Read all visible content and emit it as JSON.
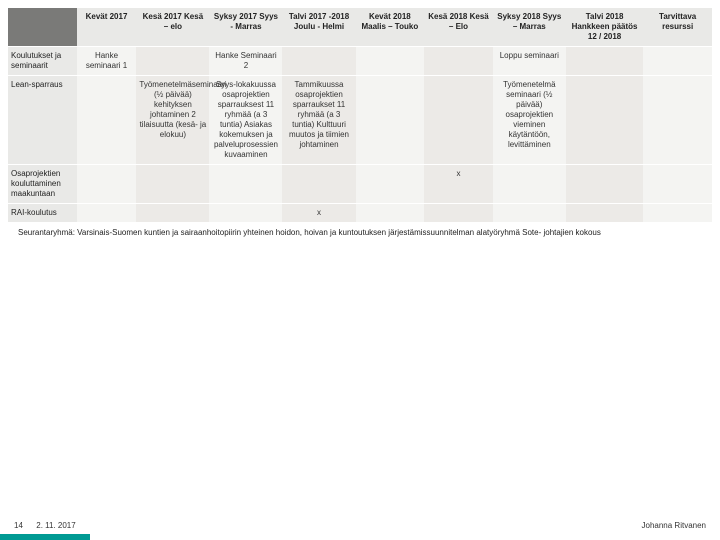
{
  "table": {
    "columns": [
      "",
      "Kevät 2017",
      "Kesä 2017 Kesä – elo",
      "Syksy 2017 Syys - Marras",
      "Talvi 2017 -2018 Joulu - Helmi",
      "Kevät 2018 Maalis – Touko",
      "Kesä 2018 Kesä – Elo",
      "Syksy 2018 Syys – Marras",
      "Talvi 2018 Hankkeen päätös 12 / 2018",
      "Tarvittava resurssi"
    ],
    "rows": [
      {
        "head": "Koulutukset ja seminaarit",
        "cells": [
          "Hanke seminaari 1",
          "",
          "Hanke Seminaari 2",
          "",
          "",
          "",
          "Loppu seminaari",
          "",
          ""
        ]
      },
      {
        "head": "Lean-sparraus",
        "cells": [
          "",
          "Työmenetelmäseminaari (½ päivää) kehityksen johtaminen 2 tilaisuutta (kesä- ja elokuu)",
          "Syys-lokakuussa osaprojektien sparrauksest 11 ryhmää (a 3 tuntia) Asiakas kokemuksen ja palveluprosessien kuvaaminen",
          "Tammikuussa osaprojektien sparraukset 11 ryhmää (a 3 tuntia) Kulttuuri muutos ja tiimien johtaminen",
          "",
          "",
          "Työmenetelmä seminaari (½ päivää) osaprojektien vieminen käytäntöön, levittäminen",
          "",
          ""
        ]
      },
      {
        "head": "Osaprojektien kouluttaminen maakuntaan",
        "cells": [
          "",
          "",
          "",
          "",
          "",
          "x",
          "",
          "",
          ""
        ]
      },
      {
        "head": "RAI-koulutus",
        "cells": [
          "",
          "",
          "",
          "x",
          "",
          "",
          "",
          "",
          ""
        ]
      }
    ],
    "footnote": "Seurantaryhmä:\nVarsinais-Suomen kuntien ja sairaanhoitopiirin yhteinen hoidon, hoivan ja kuntoutuksen järjestämissuunnitelman alatyöryhmä Sote- johtajien kokous",
    "col_widths": [
      "62px",
      "54px",
      "66px",
      "66px",
      "66px",
      "62px",
      "62px",
      "66px",
      "70px",
      "62px"
    ],
    "header_bg": "#e9e9e7",
    "corner_bg": "#7a7a78",
    "cell_bg_alt": "#f4f4f2",
    "cell_bg_even": "#eceae7",
    "accent": "#009a93"
  },
  "footer": {
    "page": "14",
    "date": "2. 11. 2017",
    "author": "Johanna Ritvanen"
  }
}
